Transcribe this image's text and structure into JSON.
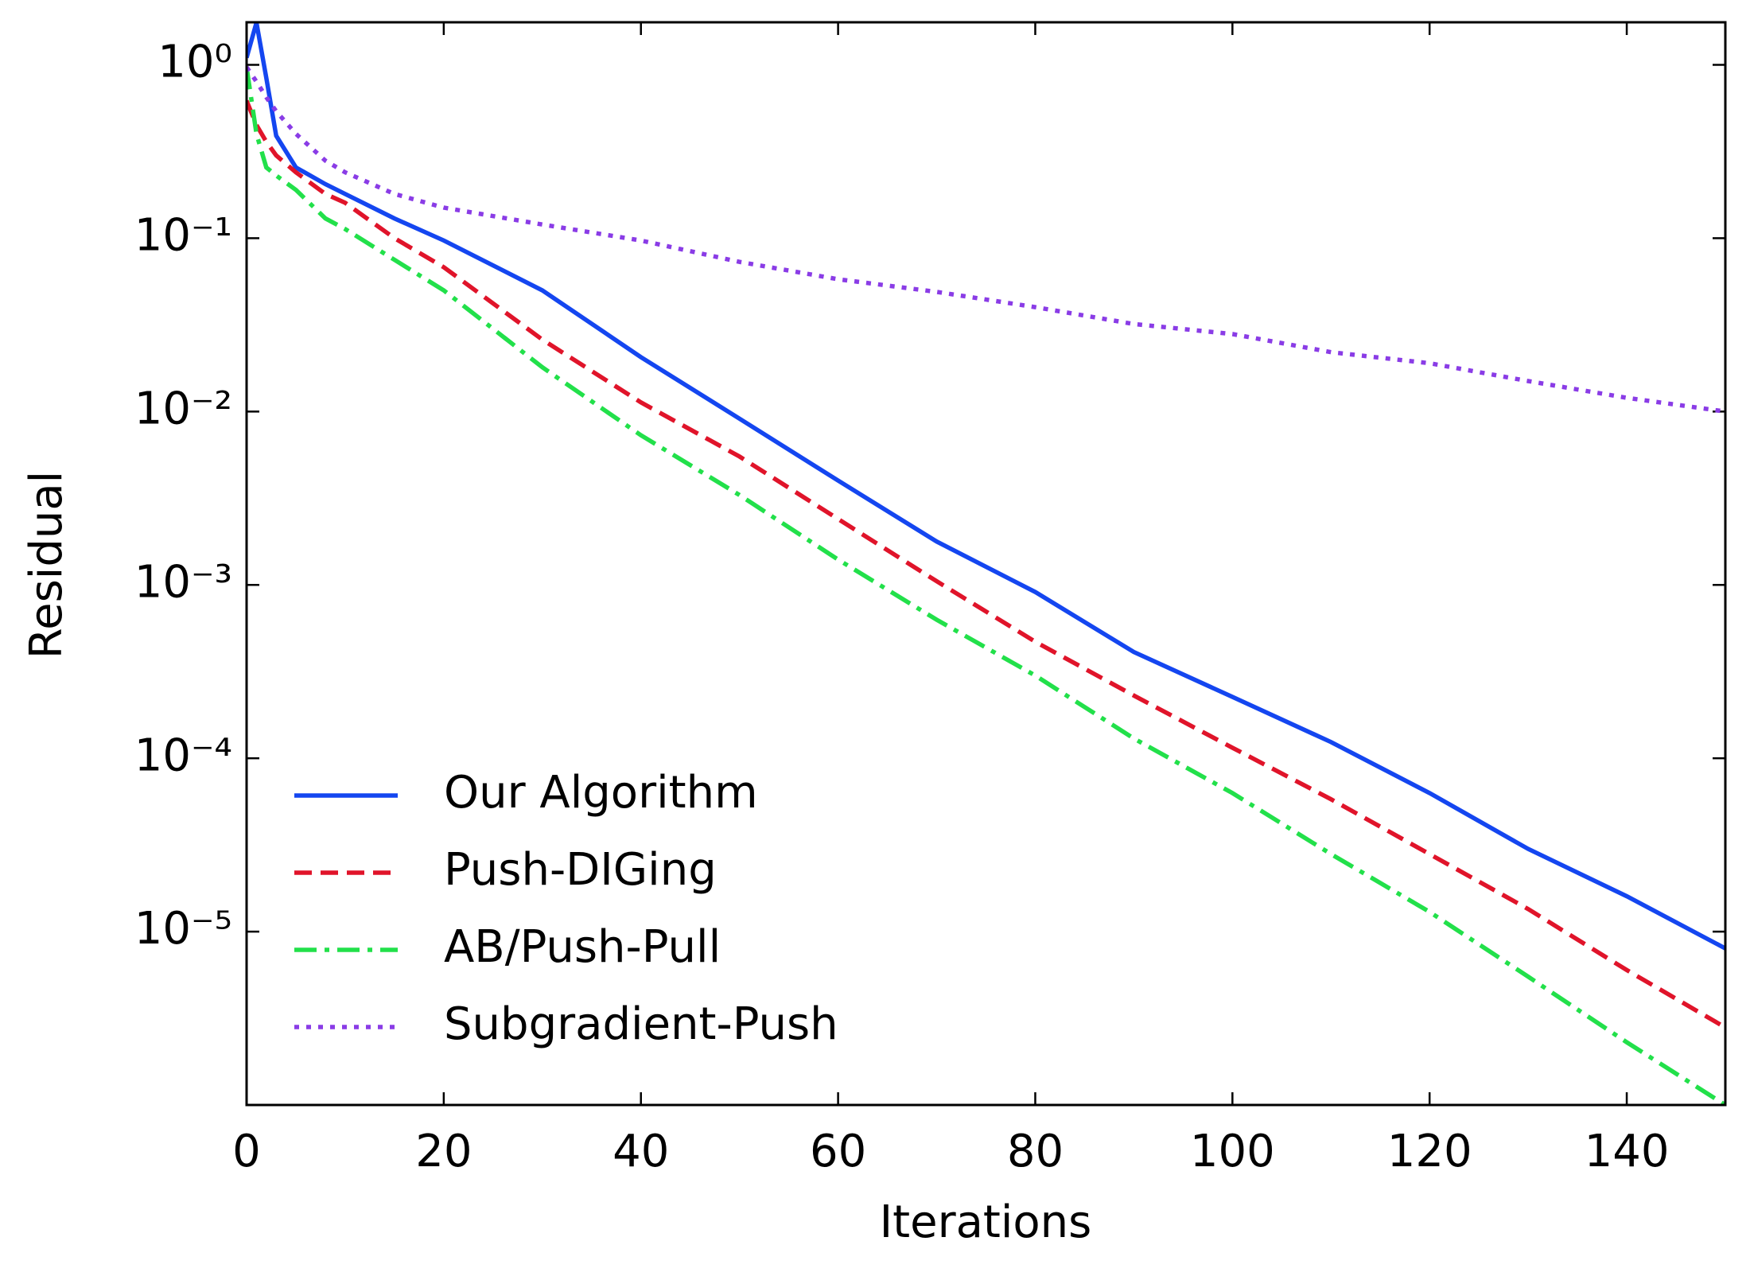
{
  "chart_data": {
    "type": "line",
    "x_label": "Iterations",
    "y_label": "Residual",
    "x": [
      0,
      1,
      2,
      3,
      5,
      8,
      10,
      15,
      20,
      30,
      40,
      50,
      60,
      70,
      80,
      90,
      100,
      110,
      120,
      130,
      140,
      150
    ],
    "series": [
      {
        "name": "Our Algorithm",
        "color": "#1446f0",
        "dash": "solid",
        "values": [
          1.1,
          1.75,
          0.84,
          0.39,
          0.256,
          0.205,
          0.18,
          0.13,
          0.097,
          0.05,
          0.0206,
          0.0091,
          0.004,
          0.00178,
          0.00091,
          0.00041,
          0.000226,
          0.000124,
          6.3e-05,
          3e-05,
          1.6e-05,
          8e-06
        ]
      },
      {
        "name": "Push-DIGing",
        "color": "#e0142a",
        "dash": "dashed",
        "values": [
          0.62,
          0.45,
          0.36,
          0.3,
          0.24,
          0.18,
          0.16,
          0.1,
          0.068,
          0.026,
          0.0113,
          0.0055,
          0.0024,
          0.00105,
          0.00047,
          0.00023,
          0.000115,
          5.8e-05,
          2.8e-05,
          1.35e-05,
          6e-06,
          2.8e-06
        ]
      },
      {
        "name": "AB/Push-Pull",
        "color": "#22e04a",
        "dash": "dashdot",
        "values": [
          0.97,
          0.4,
          0.256,
          0.23,
          0.19,
          0.13,
          0.113,
          0.075,
          0.05,
          0.018,
          0.0073,
          0.0033,
          0.0014,
          0.00063,
          0.0003,
          0.00013,
          6.3e-05,
          2.8e-05,
          1.3e-05,
          5.5e-06,
          2.3e-06,
          1e-06
        ]
      },
      {
        "name": "Subgradient-Push",
        "color": "#8a3ce6",
        "dash": "dotted",
        "values": [
          0.97,
          0.8,
          0.65,
          0.54,
          0.4,
          0.28,
          0.24,
          0.18,
          0.15,
          0.12,
          0.097,
          0.073,
          0.058,
          0.049,
          0.04,
          0.032,
          0.028,
          0.022,
          0.019,
          0.015,
          0.012,
          0.01
        ]
      }
    ],
    "xlim": [
      0,
      150
    ],
    "xticks": [
      0,
      20,
      40,
      60,
      80,
      100,
      120,
      140
    ],
    "ylim": [
      1e-06,
      1.76
    ],
    "y_scale": "log",
    "yticks": [
      {
        "value": 1,
        "label": "10⁰"
      },
      {
        "value": 0.1,
        "label": "10⁻¹"
      },
      {
        "value": 0.01,
        "label": "10⁻²"
      },
      {
        "value": 0.001,
        "label": "10⁻³"
      },
      {
        "value": 0.0001,
        "label": "10⁻⁴"
      },
      {
        "value": 1e-05,
        "label": "10⁻⁵"
      }
    ],
    "legend": "lower left",
    "grid": false
  }
}
